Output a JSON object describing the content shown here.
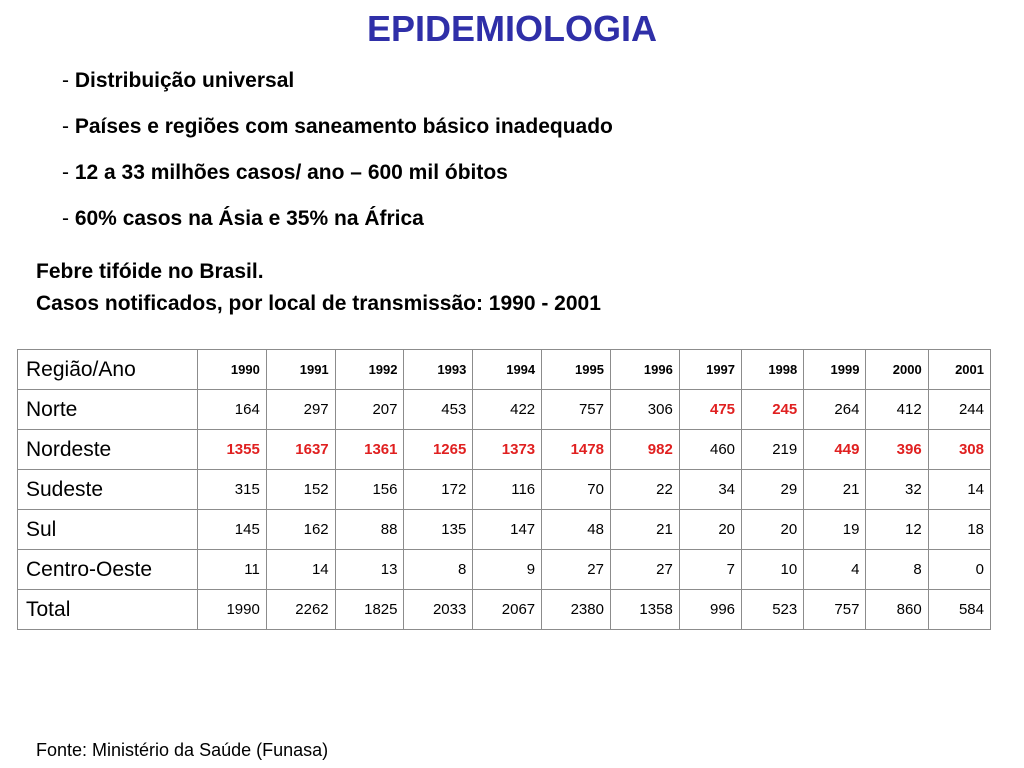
{
  "title": "EPIDEMIOLOGIA",
  "bullets": [
    {
      "dash": "- ",
      "text": "Distribuição universal"
    },
    {
      "dash": "- ",
      "text": "Países e regiões com saneamento básico inadequado"
    },
    {
      "dash": "- ",
      "text": "12 a 33 milhões casos/ ano – 600 mil óbitos"
    },
    {
      "dash": "- ",
      "text": "60% casos na Ásia e 35% na África"
    }
  ],
  "subtitle": {
    "line1": "Febre tifóide no Brasil.",
    "line2": "Casos notificados, por local de transmissão: 1990 - 2001"
  },
  "table": {
    "corner": "Região/Ano",
    "years": [
      "1990",
      "1991",
      "1992",
      "1993",
      "1994",
      "1995",
      "1996",
      "1997",
      "1998",
      "1999",
      "2000",
      "2001"
    ],
    "red_color": "#e02020",
    "rows": [
      {
        "region": "Norte",
        "values": [
          "164",
          "297",
          "207",
          "453",
          "422",
          "757",
          "306",
          "475",
          "245",
          "264",
          "412",
          "244"
        ],
        "red": [
          false,
          false,
          false,
          false,
          false,
          false,
          false,
          true,
          true,
          false,
          false,
          false
        ]
      },
      {
        "region": "Nordeste",
        "values": [
          "1355",
          "1637",
          "1361",
          "1265",
          "1373",
          "1478",
          "982",
          "460",
          "219",
          "449",
          "396",
          "308"
        ],
        "red": [
          true,
          true,
          true,
          true,
          true,
          true,
          true,
          false,
          false,
          true,
          true,
          true
        ]
      },
      {
        "region": "Sudeste",
        "values": [
          "315",
          "152",
          "156",
          "172",
          "116",
          "70",
          "22",
          "34",
          "29",
          "21",
          "32",
          "14"
        ],
        "red": [
          false,
          false,
          false,
          false,
          false,
          false,
          false,
          false,
          false,
          false,
          false,
          false
        ]
      },
      {
        "region": "Sul",
        "values": [
          "145",
          "162",
          "88",
          "135",
          "147",
          "48",
          "21",
          "20",
          "20",
          "19",
          "12",
          "18"
        ],
        "red": [
          false,
          false,
          false,
          false,
          false,
          false,
          false,
          false,
          false,
          false,
          false,
          false
        ]
      },
      {
        "region": "Centro-Oeste",
        "values": [
          "11",
          "14",
          "13",
          "8",
          "9",
          "27",
          "27",
          "7",
          "10",
          "4",
          "8",
          "0"
        ],
        "red": [
          false,
          false,
          false,
          false,
          false,
          false,
          false,
          false,
          false,
          false,
          false,
          false
        ]
      },
      {
        "region": "Total",
        "values": [
          "1990",
          "2262",
          "1825",
          "2033",
          "2067",
          "2380",
          "1358",
          "996",
          "523",
          "757",
          "860",
          "584"
        ],
        "red": [
          false,
          false,
          false,
          false,
          false,
          false,
          false,
          false,
          false,
          false,
          false,
          false
        ]
      }
    ]
  },
  "source": "Fonte: Ministério da Saúde (Funasa)"
}
